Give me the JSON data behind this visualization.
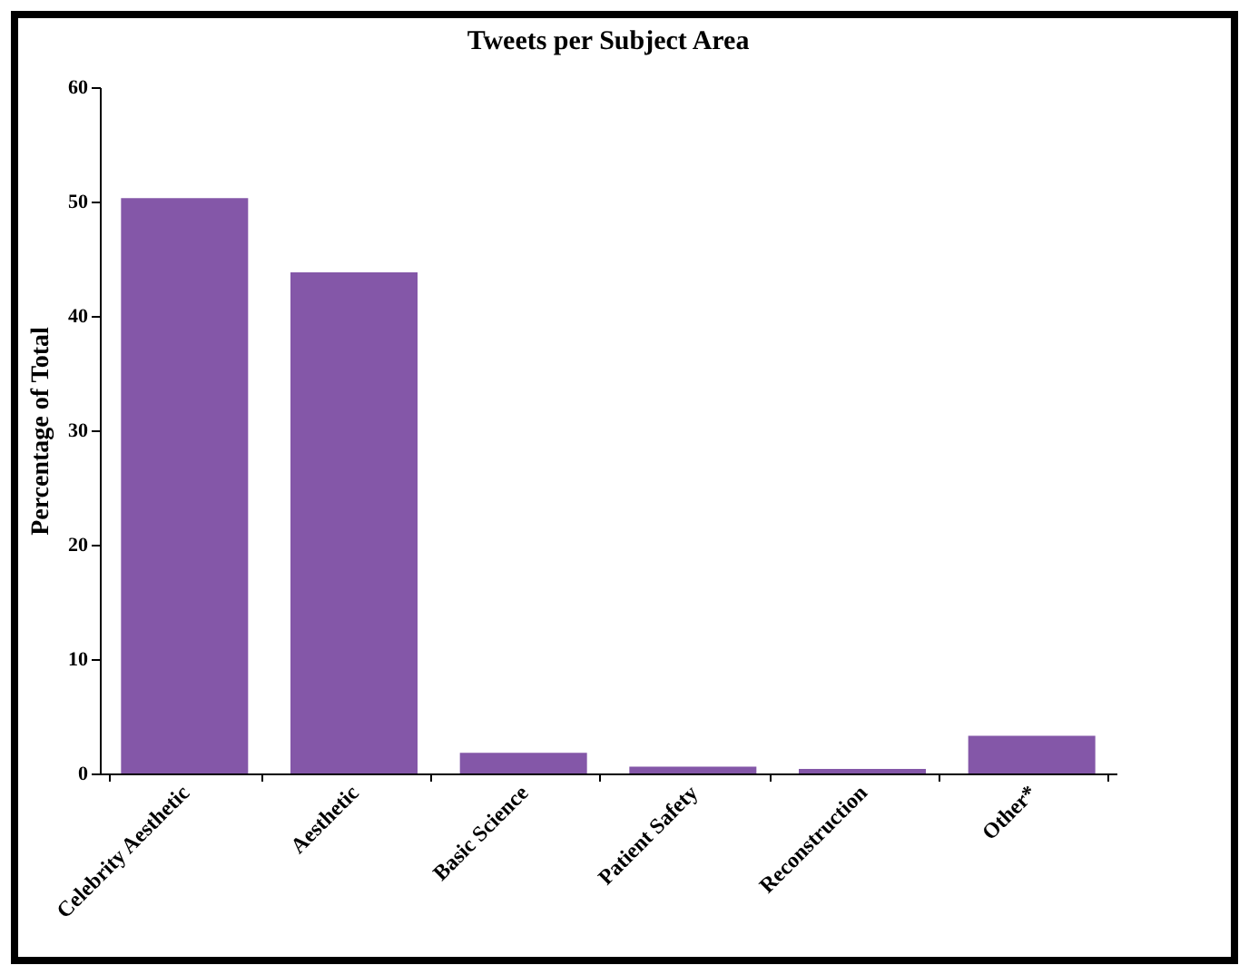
{
  "chart_data": {
    "type": "bar",
    "title": "Tweets per Subject Area",
    "ylabel": "Percentage of Total",
    "categories": [
      "Celebrity Aesthetic",
      "Aesthetic",
      "Basic Science",
      "Patient Safety",
      "Reconstruction",
      "Other*"
    ],
    "values": [
      50.3,
      43.8,
      1.8,
      0.6,
      0.4,
      3.3
    ],
    "color": "#8457a8",
    "ylim": [
      0,
      60
    ],
    "yticks": [
      0,
      10,
      20,
      30,
      40,
      50,
      60
    ],
    "grid": false
  }
}
